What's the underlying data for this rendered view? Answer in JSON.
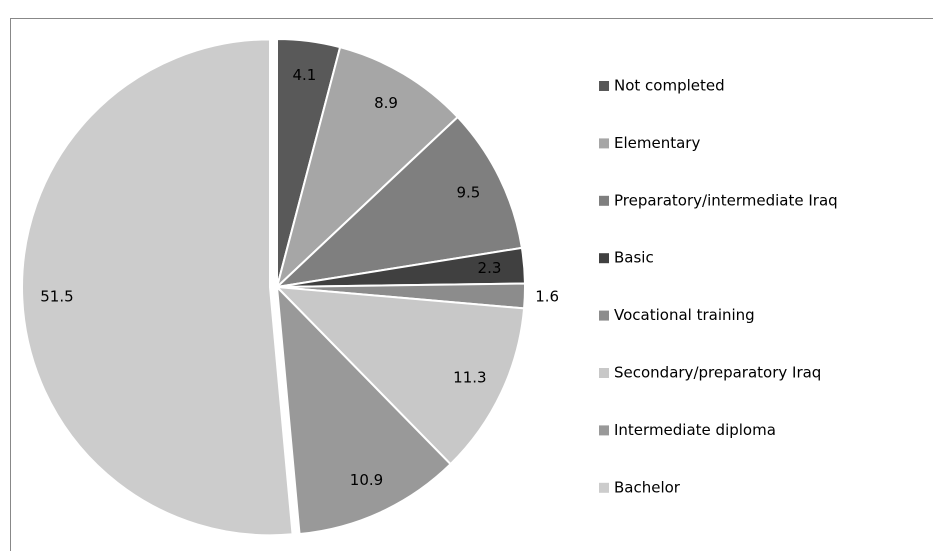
{
  "chart_data": {
    "type": "pie",
    "categories": [
      "Not completed",
      "Elementary",
      "Preparatory/intermediate Iraq",
      "Basic",
      "Vocational training",
      "Secondary/preparatory Iraq",
      "Intermediate diploma",
      "Bachelor"
    ],
    "values": [
      4.1,
      8.9,
      9.5,
      2.3,
      1.6,
      11.3,
      10.9,
      51.5
    ],
    "colors": [
      "#595959",
      "#a6a6a6",
      "#7f7f7f",
      "#404040",
      "#8c8c8c",
      "#c8c8c8",
      "#999999",
      "#cccccc"
    ],
    "exploded": [
      false,
      false,
      false,
      false,
      false,
      false,
      false,
      true
    ],
    "legend": "right"
  }
}
